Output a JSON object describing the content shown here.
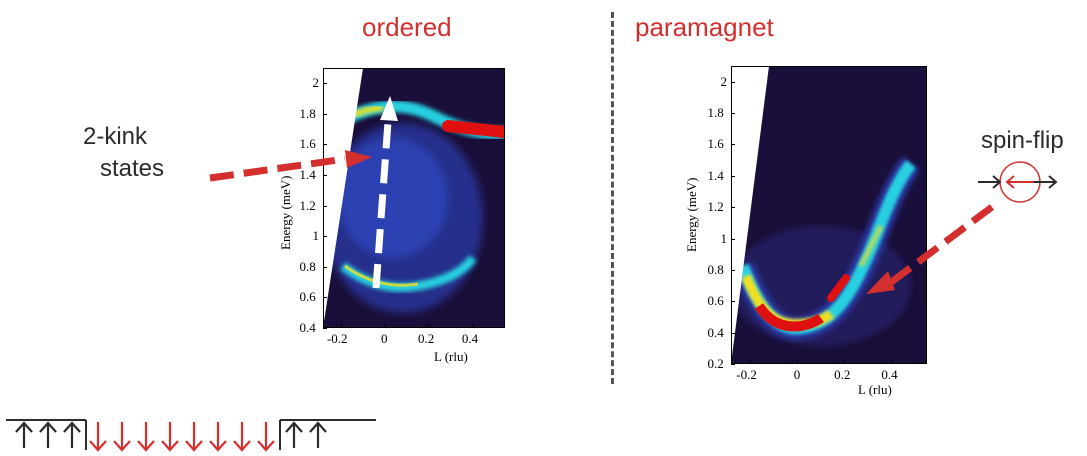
{
  "titles": {
    "ordered": "ordered",
    "paramagnet": "paramagnet"
  },
  "annotations": {
    "kink_line1": "2-kink",
    "kink_line2": "states",
    "spin_flip": "spin-flip"
  },
  "colors": {
    "accent_red": "#d32f2f",
    "arrow_white": "#ffffff",
    "text_dark": "#2b2b2b",
    "map_background": "#1a0f3a",
    "map_low": "#2a3aa8",
    "map_mid": "#25d0e0",
    "map_high": "#f0e020",
    "map_peak": "#e01010"
  },
  "chart_data": [
    {
      "type": "heatmap",
      "title": "ordered",
      "xlabel": "L (rlu)",
      "ylabel": "Energy  (meV)",
      "xlim": [
        -0.28,
        0.55
      ],
      "ylim": [
        0.4,
        2.1
      ],
      "x_ticks": [
        "-0.2",
        "0",
        "0.2",
        "0.4"
      ],
      "y_ticks": [
        "0.4",
        "0.6",
        "0.8",
        "1",
        "1.2",
        "1.4",
        "1.6",
        "1.8",
        "2"
      ],
      "x_tick_values": [
        -0.2,
        0,
        0.2,
        0.4
      ],
      "y_tick_values": [
        0.4,
        0.6,
        0.8,
        1.0,
        1.2,
        1.4,
        1.6,
        1.8,
        2.0
      ],
      "features": {
        "lower_band": {
          "x": [
            -0.2,
            -0.1,
            0.0,
            0.1,
            0.2,
            0.3
          ],
          "y": [
            0.8,
            0.72,
            0.68,
            0.7,
            0.75,
            0.82
          ]
        },
        "upper_band": {
          "x": [
            -0.15,
            0.0,
            0.15,
            0.3,
            0.45,
            0.55
          ],
          "y": [
            1.8,
            1.83,
            1.78,
            1.7,
            1.65,
            1.63
          ]
        },
        "hot_spot": {
          "x": [
            0.3,
            0.55
          ],
          "y": [
            1.67,
            1.63
          ]
        }
      },
      "vertical_arrow": {
        "x": 0.02,
        "y_from": 0.65,
        "y_to": 1.9
      }
    },
    {
      "type": "heatmap",
      "title": "paramagnet",
      "xlabel": "L (rlu)",
      "ylabel": "Energy  (meV)",
      "xlim": [
        -0.28,
        0.55
      ],
      "ylim": [
        0.2,
        2.1
      ],
      "x_ticks": [
        "-0.2",
        "0",
        "0.2",
        "0.4"
      ],
      "y_ticks": [
        "0.2",
        "0.4",
        "0.6",
        "0.8",
        "1",
        "1.2",
        "1.4",
        "1.6",
        "1.8",
        "2"
      ],
      "x_tick_values": [
        -0.2,
        0,
        0.2,
        0.4
      ],
      "y_tick_values": [
        0.2,
        0.4,
        0.6,
        0.8,
        1.0,
        1.2,
        1.4,
        1.6,
        1.8,
        2.0
      ],
      "features": {
        "dispersion": {
          "x": [
            -0.22,
            -0.15,
            -0.08,
            0.0,
            0.08,
            0.15,
            0.22,
            0.3,
            0.38,
            0.44
          ],
          "y": [
            0.78,
            0.58,
            0.45,
            0.4,
            0.45,
            0.57,
            0.75,
            1.0,
            1.28,
            1.45
          ]
        }
      }
    }
  ],
  "spin_chain": {
    "up_left_count": 3,
    "down_count": 8,
    "up_right_count": 2
  }
}
